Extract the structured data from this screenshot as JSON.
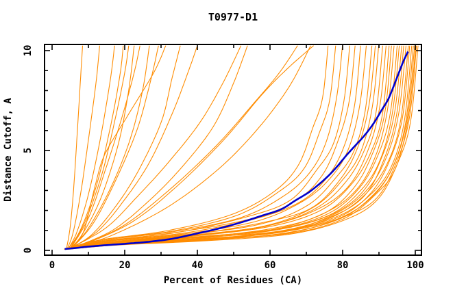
{
  "window": {
    "background": "#ffffff"
  },
  "chart_data": {
    "type": "line",
    "title": "T0977-D1",
    "xlabel": "Percent of Residues (CA)",
    "ylabel": "Distance Cutoff, A",
    "xlim": [
      -2.1,
      101.7
    ],
    "ylim": [
      -0.24,
      10.33
    ],
    "grid": false,
    "legend": "none",
    "x_major_ticks": [
      0,
      20,
      40,
      60,
      80,
      100
    ],
    "x_tick_labels": [
      "0",
      "20",
      "40",
      "60",
      "80",
      "100"
    ],
    "x_minor_step": 10,
    "y_major_ticks": [
      0,
      5,
      10
    ],
    "y_tick_labels": [
      "0",
      "5",
      "10"
    ],
    "y_minor_step": 1,
    "colors": {
      "model_curves": "#ff8c00",
      "reference_curve": "#0000cd",
      "axis": "#000000",
      "background": "#ffffff"
    },
    "reference_curve": {
      "name": "reference-model",
      "points": [
        [
          3.5,
          0.07
        ],
        [
          6.5,
          0.12
        ],
        [
          12,
          0.22
        ],
        [
          20,
          0.33
        ],
        [
          26,
          0.42
        ],
        [
          33,
          0.58
        ],
        [
          40,
          0.85
        ],
        [
          46,
          1.1
        ],
        [
          52,
          1.4
        ],
        [
          58,
          1.75
        ],
        [
          63,
          2.05
        ],
        [
          67,
          2.5
        ],
        [
          71,
          2.95
        ],
        [
          75,
          3.55
        ],
        [
          78,
          4.1
        ],
        [
          81,
          4.75
        ],
        [
          83.5,
          5.25
        ],
        [
          86,
          5.75
        ],
        [
          88.5,
          6.35
        ],
        [
          90.5,
          6.95
        ],
        [
          92.5,
          7.55
        ],
        [
          94,
          8.2
        ],
        [
          95.5,
          8.9
        ],
        [
          96.8,
          9.5
        ],
        [
          98,
          9.95
        ]
      ]
    },
    "model_curves": [
      {
        "points": [
          [
            4.0,
            0.1
          ],
          [
            5.0,
            1.2
          ],
          [
            5.9,
            3.0
          ],
          [
            6.8,
            5.5
          ],
          [
            7.7,
            8.2
          ],
          [
            8.4,
            10.25
          ]
        ]
      },
      {
        "points": [
          [
            4.2,
            0.1
          ],
          [
            5.8,
            0.9
          ],
          [
            8.0,
            3.0
          ],
          [
            10.2,
            5.8
          ],
          [
            12.1,
            8.4
          ],
          [
            13.1,
            10.25
          ]
        ]
      },
      {
        "points": [
          [
            4.5,
            0.1
          ],
          [
            6.8,
            0.9
          ],
          [
            10.0,
            2.8
          ],
          [
            13.3,
            5.6
          ],
          [
            16.0,
            8.5
          ],
          [
            17.2,
            10.25
          ]
        ]
      },
      {
        "points": [
          [
            4.6,
            0.12
          ],
          [
            8.0,
            1.1
          ],
          [
            12.3,
            3.3
          ],
          [
            16.2,
            6.3
          ],
          [
            18.7,
            8.8
          ],
          [
            19.6,
            10.25
          ]
        ]
      },
      {
        "points": [
          [
            5.0,
            0.12
          ],
          [
            9.0,
            1.4
          ],
          [
            13.7,
            3.8
          ],
          [
            17.4,
            6.6
          ],
          [
            20.0,
            8.9
          ],
          [
            21.1,
            10.25
          ]
        ]
      },
      {
        "points": [
          [
            5.0,
            0.1
          ],
          [
            8.3,
            0.8
          ],
          [
            13.4,
            2.6
          ],
          [
            18.2,
            5.3
          ],
          [
            21.0,
            7.9
          ],
          [
            22.6,
            10.25
          ]
        ]
      },
      {
        "points": [
          [
            5.3,
            0.15
          ],
          [
            10.2,
            1.7
          ],
          [
            14.8,
            4.1
          ],
          [
            19.3,
            6.7
          ],
          [
            22.6,
            8.9
          ],
          [
            24.2,
            10.25
          ]
        ]
      },
      {
        "points": [
          [
            5.0,
            0.1
          ],
          [
            9.6,
            1.0
          ],
          [
            15.8,
            3.0
          ],
          [
            21.2,
            5.4
          ],
          [
            24.8,
            7.9
          ],
          [
            26.8,
            10.25
          ]
        ]
      },
      {
        "points": [
          [
            5.5,
            0.12
          ],
          [
            11.5,
            1.4
          ],
          [
            18.0,
            3.7
          ],
          [
            23.5,
            6.1
          ],
          [
            27.0,
            8.4
          ],
          [
            29.3,
            10.25
          ]
        ]
      },
      {
        "points": [
          [
            5.0,
            0.1
          ],
          [
            8.6,
            0.9
          ],
          [
            11.8,
            3.2
          ],
          [
            14.5,
            4.8
          ],
          [
            21.0,
            6.8
          ],
          [
            28.0,
            8.9
          ],
          [
            31.3,
            10.25
          ]
        ]
      },
      {
        "points": [
          [
            4.8,
            0.1
          ],
          [
            10.7,
            0.75
          ],
          [
            17.1,
            2.1
          ],
          [
            23.5,
            3.9
          ],
          [
            30.0,
            6.4
          ],
          [
            33.0,
            8.6
          ],
          [
            35.3,
            10.25
          ]
        ]
      },
      {
        "points": [
          [
            5.2,
            0.1
          ],
          [
            12.8,
            1.0
          ],
          [
            19.8,
            2.5
          ],
          [
            26.8,
            4.4
          ],
          [
            33.2,
            6.9
          ],
          [
            37.6,
            9.0
          ],
          [
            40.0,
            10.25
          ]
        ]
      },
      {
        "points": [
          [
            5.0,
            0.1
          ],
          [
            15.0,
            1.15
          ],
          [
            23.5,
            2.7
          ],
          [
            32.0,
            4.4
          ],
          [
            40.7,
            6.4
          ],
          [
            47.1,
            8.4
          ],
          [
            52.0,
            10.25
          ]
        ]
      },
      {
        "points": [
          [
            5.2,
            0.1
          ],
          [
            16.6,
            1.0
          ],
          [
            26.8,
            2.5
          ],
          [
            35.9,
            4.2
          ],
          [
            44.4,
            6.2
          ],
          [
            49.8,
            8.3
          ],
          [
            53.8,
            10.25
          ]
        ]
      },
      {
        "points": [
          [
            6.0,
            0.1
          ],
          [
            19.3,
            1.2
          ],
          [
            32.1,
            3.0
          ],
          [
            45.0,
            5.2
          ],
          [
            55.7,
            7.4
          ],
          [
            62.6,
            8.9
          ],
          [
            67.6,
            10.25
          ]
        ]
      },
      {
        "points": [
          [
            6.2,
            0.1
          ],
          [
            21.4,
            1.35
          ],
          [
            34.3,
            3.2
          ],
          [
            47.1,
            5.5
          ],
          [
            57.8,
            7.8
          ],
          [
            64.8,
            9.1
          ],
          [
            72.0,
            10.25
          ]
        ]
      },
      {
        "points": [
          [
            5.5,
            0.1
          ],
          [
            17.1,
            0.8
          ],
          [
            32.1,
            2.2
          ],
          [
            46.0,
            4.1
          ],
          [
            56.7,
            6.1
          ],
          [
            65.3,
            8.2
          ],
          [
            71.2,
            10.25
          ]
        ]
      }
    ],
    "bundle_curves": {
      "description": "dense bundle of model curves hugging low cutoff then rising steeply near the right; values are x where each curve reaches the top of the plot",
      "top_exit_x": [
        76,
        78,
        80,
        82,
        83.5,
        85,
        86.5,
        88,
        89,
        90,
        91,
        92,
        92.8,
        93.5,
        94.2,
        95,
        95.6,
        96.2,
        96.8,
        97.4,
        98,
        98.5,
        99,
        99.4,
        99.8,
        100.1,
        100.4,
        100.7
      ]
    }
  }
}
